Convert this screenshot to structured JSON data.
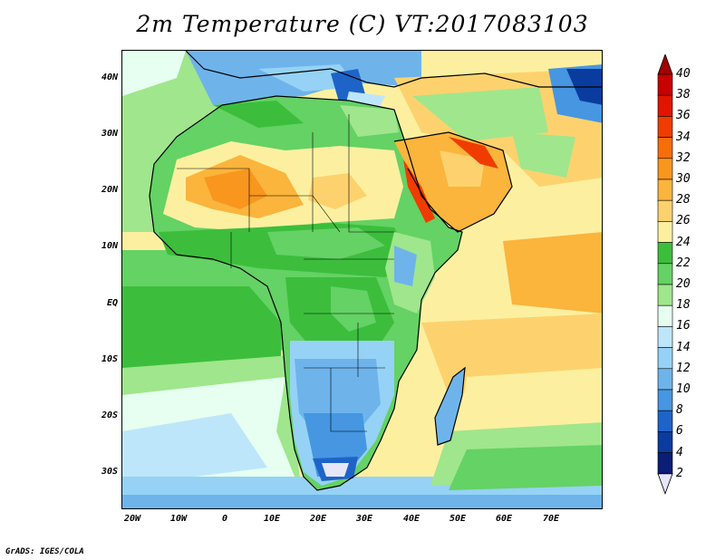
{
  "title": "2m Temperature (C) VT:2017083103",
  "credit": "GrADS: IGES/COLA",
  "axes": {
    "lat_labels": [
      "40N",
      "30N",
      "20N",
      "10N",
      "EQ",
      "10S",
      "20S",
      "30S"
    ],
    "lon_labels": [
      "20W",
      "10W",
      "0",
      "10E",
      "20E",
      "30E",
      "40E",
      "50E",
      "60E",
      "70E"
    ]
  },
  "colorbar": {
    "labels": [
      "40",
      "38",
      "36",
      "34",
      "32",
      "30",
      "28",
      "26",
      "24",
      "22",
      "20",
      "18",
      "16",
      "14",
      "12",
      "10",
      "8",
      "6",
      "4",
      "2"
    ],
    "colors": [
      "#a00000",
      "#c80000",
      "#e11400",
      "#f03c00",
      "#f56e0a",
      "#f8961e",
      "#fbb43c",
      "#fdd26e",
      "#fcf0a0",
      "#3cbe3c",
      "#64d264",
      "#a0e68c",
      "#e6fff0",
      "#bee6fa",
      "#96d2f5",
      "#6eb4eb",
      "#4696e1",
      "#1e64c8",
      "#0a3ca0",
      "#0a1e78"
    ],
    "over_color": "#a00000",
    "under_color": "#e6e6fa"
  }
}
